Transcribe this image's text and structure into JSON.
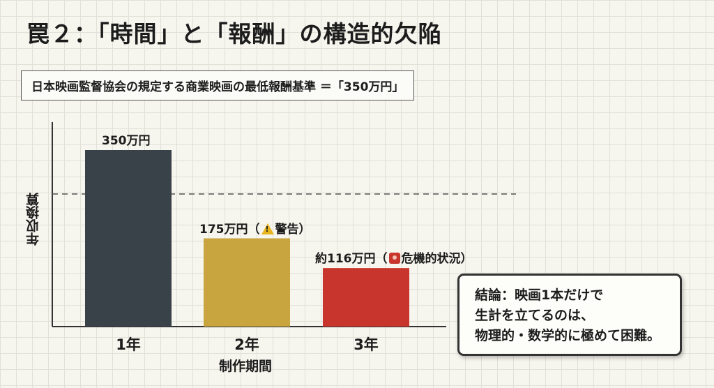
{
  "title": "罠２：「時間」と「報酬」の構造的欠陥",
  "subtitle": "日本映画監督協会の規定する商業映画の最低報酬基準 ＝「350万円」",
  "chart_data": {
    "type": "bar",
    "categories": [
      "1年",
      "2年",
      "3年"
    ],
    "values": [
      350,
      175,
      116
    ],
    "bar_labels": [
      "350万円",
      "175万円（",
      "約116万円（"
    ],
    "bar_label_suffixes": [
      "",
      "警告）",
      "危機的状況）"
    ],
    "bar_label_icons": [
      "",
      "warning-icon",
      "alert-icon"
    ],
    "colors": [
      "#3a4249",
      "#c9a540",
      "#c8352c"
    ],
    "reference_line": 350,
    "xlabel": "制作期間",
    "ylabel": "年収換算",
    "grid": false
  },
  "conclusion": {
    "lines": [
      "結論：映画1本だけで",
      "生計を立てるのは、",
      "物理的・数学的に極めて困難。"
    ]
  }
}
